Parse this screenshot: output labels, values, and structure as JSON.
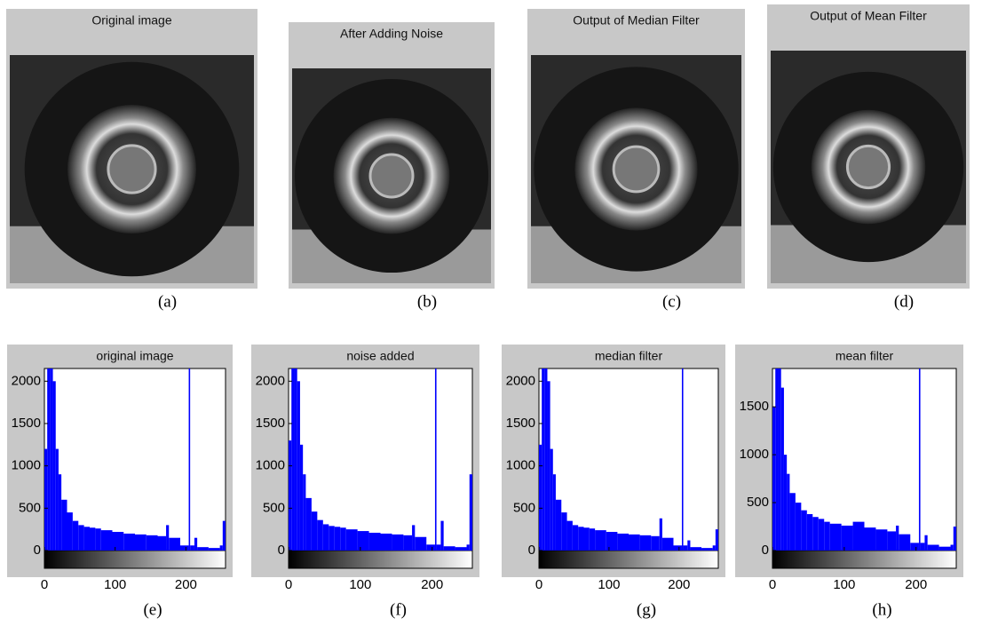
{
  "images": [
    {
      "title": "Original image",
      "caption": "(a)"
    },
    {
      "title": "After Adding Noise",
      "caption": "(b)"
    },
    {
      "title": "Output of Median Filter",
      "caption": "(c)"
    },
    {
      "title": "Output of Mean Filter",
      "caption": "(d)"
    }
  ],
  "chart_data": [
    {
      "type": "histogram",
      "title": "original image",
      "caption": "(e)",
      "color": "#0000ff",
      "bins": [
        0,
        4,
        8,
        12,
        16,
        20,
        24,
        32,
        40,
        48,
        56,
        64,
        72,
        80,
        96,
        112,
        128,
        144,
        160,
        172,
        176,
        192,
        204,
        206,
        212,
        216,
        232,
        248,
        252,
        256
      ],
      "values": [
        1200,
        2150,
        2150,
        2000,
        1200,
        900,
        600,
        450,
        350,
        300,
        280,
        270,
        260,
        240,
        220,
        200,
        190,
        180,
        170,
        300,
        150,
        60,
        2150,
        60,
        150,
        40,
        30,
        60,
        350
      ],
      "xlim": [
        0,
        256
      ],
      "xticks": [
        0,
        100,
        200
      ],
      "ylim": [
        0,
        2150
      ],
      "yticks": [
        0,
        500,
        1000,
        1500,
        2000
      ]
    },
    {
      "type": "histogram",
      "title": "noise added",
      "caption": "(f)",
      "color": "#0000ff",
      "bins": [
        0,
        4,
        8,
        12,
        16,
        20,
        24,
        32,
        40,
        48,
        56,
        64,
        72,
        80,
        96,
        112,
        128,
        144,
        160,
        172,
        176,
        192,
        204,
        206,
        212,
        216,
        232,
        248,
        252,
        256
      ],
      "values": [
        1300,
        2150,
        2150,
        2000,
        1250,
        900,
        620,
        460,
        360,
        310,
        290,
        280,
        270,
        250,
        230,
        210,
        200,
        190,
        180,
        300,
        160,
        70,
        2150,
        70,
        350,
        50,
        40,
        70,
        900
      ],
      "xlim": [
        0,
        256
      ],
      "xticks": [
        0,
        100,
        200
      ],
      "ylim": [
        0,
        2150
      ],
      "yticks": [
        0,
        500,
        1000,
        1500,
        2000
      ]
    },
    {
      "type": "histogram",
      "title": "median filter",
      "caption": "(g)",
      "color": "#0000ff",
      "bins": [
        0,
        4,
        8,
        12,
        16,
        20,
        24,
        32,
        40,
        48,
        56,
        64,
        72,
        80,
        96,
        112,
        128,
        144,
        160,
        172,
        176,
        192,
        204,
        206,
        212,
        216,
        232,
        248,
        252,
        256
      ],
      "values": [
        1250,
        2150,
        2150,
        2000,
        1200,
        900,
        600,
        450,
        350,
        300,
        280,
        270,
        260,
        240,
        220,
        200,
        190,
        180,
        170,
        380,
        150,
        60,
        2150,
        60,
        120,
        40,
        30,
        60,
        250
      ],
      "xlim": [
        0,
        256
      ],
      "xticks": [
        0,
        100,
        200
      ],
      "ylim": [
        0,
        2150
      ],
      "yticks": [
        0,
        500,
        1000,
        1500,
        2000
      ]
    },
    {
      "type": "histogram",
      "title": "mean filter",
      "caption": "(h)",
      "color": "#0000ff",
      "bins": [
        0,
        4,
        8,
        12,
        16,
        20,
        24,
        32,
        40,
        48,
        56,
        64,
        72,
        80,
        96,
        112,
        128,
        144,
        160,
        172,
        176,
        192,
        204,
        206,
        212,
        216,
        232,
        248,
        252,
        256
      ],
      "values": [
        1500,
        1900,
        1900,
        1700,
        1000,
        800,
        600,
        500,
        420,
        380,
        350,
        330,
        300,
        280,
        260,
        300,
        240,
        220,
        200,
        260,
        170,
        80,
        1900,
        80,
        160,
        60,
        40,
        60,
        250
      ],
      "xlim": [
        0,
        256
      ],
      "xticks": [
        0,
        100,
        200
      ],
      "ylim": [
        0,
        1900
      ],
      "yticks": [
        0,
        500,
        1000,
        1500
      ]
    }
  ]
}
